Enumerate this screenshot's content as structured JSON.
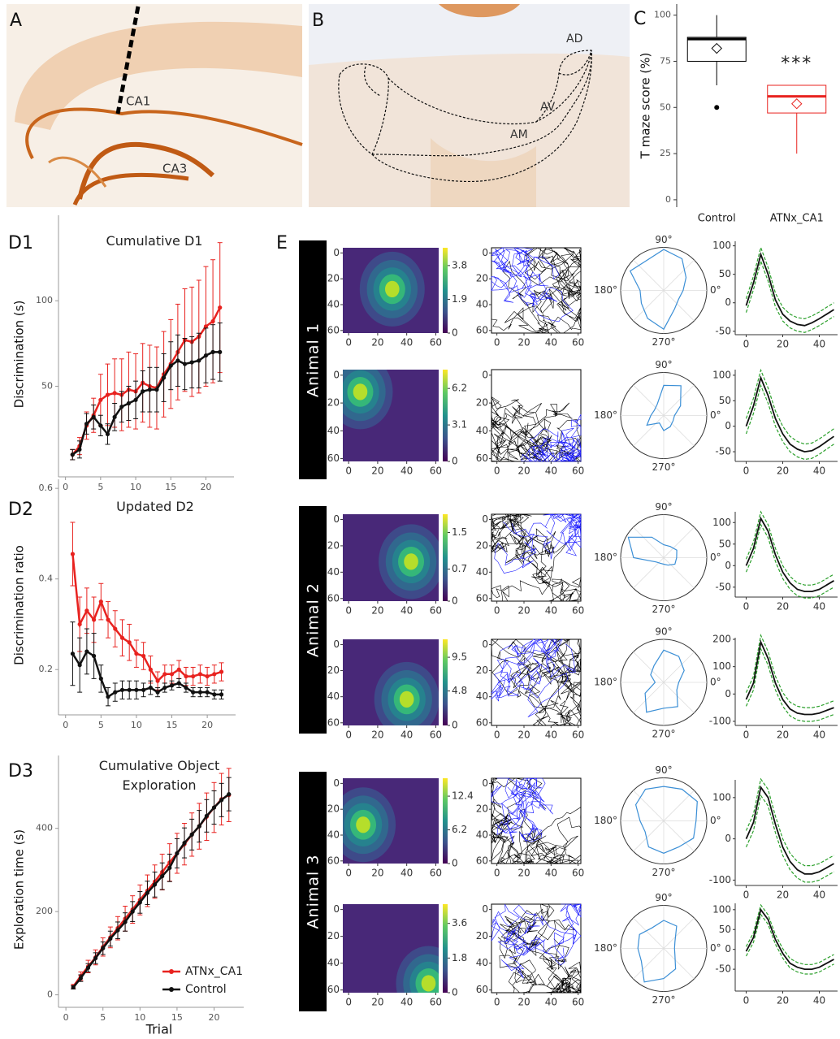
{
  "panel_a": {
    "label": "A",
    "regions": [
      "CA1",
      "CA3"
    ]
  },
  "panel_b": {
    "label": "B",
    "regions": [
      "AD",
      "AV",
      "AM"
    ]
  },
  "chart_data": [
    {
      "type": "box",
      "panel": "C",
      "ylabel": "T maze score (%)",
      "categories": [
        "Control",
        "ATNx_CA1"
      ],
      "ylim": [
        -4,
        106
      ],
      "yticks": [
        0,
        25,
        50,
        75,
        100
      ],
      "annotation": "***",
      "boxes": [
        {
          "color": "#000000",
          "whisker_low": 62,
          "q1": 75,
          "median": 87,
          "q3": 88,
          "whisker_high": 100,
          "mean": 82,
          "outliers": [
            50
          ]
        },
        {
          "color": "#e8221f",
          "whisker_low": 25,
          "q1": 47,
          "median": 56,
          "q3": 62,
          "whisker_high": 62,
          "mean": 52,
          "outliers": []
        }
      ]
    },
    {
      "type": "line",
      "panel": "D1",
      "title": "Cumulative D1",
      "ylabel": "Discrimination (s)",
      "x": [
        1,
        2,
        3,
        4,
        5,
        6,
        7,
        8,
        9,
        10,
        11,
        12,
        13,
        14,
        15,
        16,
        17,
        18,
        19,
        20,
        21,
        22
      ],
      "xlim": [
        -1,
        24
      ],
      "xticks": [
        0,
        5,
        10,
        15,
        20
      ],
      "ylim": [
        -3,
        150
      ],
      "yticks": [
        50,
        100
      ],
      "series": [
        {
          "color": "#e8221f",
          "values": [
            10,
            15,
            27,
            33,
            42,
            45,
            46,
            45,
            48,
            47,
            52,
            50,
            49,
            57,
            63,
            70,
            77,
            76,
            79,
            85,
            88,
            96
          ],
          "errors": [
            3,
            5,
            8,
            10,
            15,
            18,
            20,
            21,
            22,
            22,
            23,
            24,
            24,
            25,
            26,
            28,
            30,
            32,
            33,
            35,
            36,
            38
          ]
        },
        {
          "color": "#111111",
          "values": [
            10,
            13,
            28,
            32,
            27,
            22,
            32,
            38,
            40,
            42,
            47,
            48,
            48,
            55,
            62,
            65,
            63,
            64,
            65,
            68,
            70,
            70
          ],
          "errors": [
            3,
            5,
            6,
            7,
            6,
            6,
            8,
            9,
            10,
            11,
            12,
            13,
            13,
            14,
            14,
            15,
            15,
            15,
            16,
            16,
            16,
            17
          ]
        }
      ]
    },
    {
      "type": "line",
      "panel": "D2",
      "title": "Updated D2",
      "ylabel": "Discrimination ratio",
      "x": [
        1,
        2,
        3,
        4,
        5,
        6,
        7,
        8,
        9,
        10,
        11,
        12,
        13,
        14,
        15,
        16,
        17,
        18,
        19,
        20,
        21,
        22
      ],
      "xlim": [
        -1,
        24
      ],
      "xticks": [
        0,
        5,
        10,
        15,
        20
      ],
      "ylim": [
        0.1,
        0.62
      ],
      "yticks": [
        0.2,
        0.4,
        0.6
      ],
      "series": [
        {
          "color": "#e8221f",
          "values": [
            0.455,
            0.3,
            0.33,
            0.31,
            0.35,
            0.31,
            0.29,
            0.27,
            0.26,
            0.235,
            0.23,
            0.2,
            0.175,
            0.19,
            0.19,
            0.2,
            0.185,
            0.185,
            0.19,
            0.185,
            0.19,
            0.195
          ],
          "errors": [
            0.07,
            0.06,
            0.05,
            0.05,
            0.04,
            0.04,
            0.04,
            0.04,
            0.04,
            0.03,
            0.03,
            0.03,
            0.02,
            0.02,
            0.02,
            0.02,
            0.02,
            0.02,
            0.02,
            0.02,
            0.02,
            0.02
          ]
        },
        {
          "color": "#111111",
          "values": [
            0.235,
            0.21,
            0.24,
            0.23,
            0.18,
            0.14,
            0.15,
            0.155,
            0.155,
            0.155,
            0.155,
            0.16,
            0.15,
            0.16,
            0.165,
            0.17,
            0.16,
            0.15,
            0.15,
            0.15,
            0.145,
            0.145
          ],
          "errors": [
            0.07,
            0.06,
            0.05,
            0.05,
            0.03,
            0.02,
            0.02,
            0.02,
            0.02,
            0.02,
            0.015,
            0.015,
            0.01,
            0.01,
            0.01,
            0.01,
            0.01,
            0.01,
            0.01,
            0.01,
            0.01,
            0.01
          ]
        }
      ]
    },
    {
      "type": "line",
      "panel": "D3",
      "title": "Cumulative Object Exploration",
      "ylabel": "Exploration time (s)",
      "xlabel": "Trial",
      "x": [
        1,
        2,
        3,
        4,
        5,
        6,
        7,
        8,
        9,
        10,
        11,
        12,
        13,
        14,
        15,
        16,
        17,
        18,
        19,
        20,
        21,
        22
      ],
      "xlim": [
        -1,
        24
      ],
      "xticks": [
        0,
        5,
        10,
        15,
        20
      ],
      "ylim": [
        -30,
        575
      ],
      "yticks": [
        0,
        200,
        400
      ],
      "legend": "lower right",
      "series": [
        {
          "name": "ATNx_CA1",
          "color": "#e8221f",
          "values": [
            20,
            45,
            68,
            90,
            115,
            138,
            160,
            183,
            205,
            228,
            250,
            272,
            295,
            318,
            340,
            362,
            385,
            405,
            428,
            450,
            470,
            480
          ],
          "errors": [
            5,
            10,
            15,
            18,
            22,
            25,
            28,
            30,
            33,
            36,
            38,
            40,
            43,
            45,
            48,
            50,
            52,
            55,
            57,
            60,
            62,
            64
          ]
        },
        {
          "name": "Control",
          "color": "#111111",
          "values": [
            18,
            40,
            65,
            88,
            112,
            135,
            155,
            175,
            200,
            222,
            245,
            265,
            285,
            305,
            340,
            365,
            385,
            405,
            430,
            450,
            468,
            482
          ],
          "errors": [
            4,
            8,
            10,
            13,
            15,
            18,
            20,
            22,
            24,
            26,
            28,
            30,
            32,
            33,
            35,
            36,
            37,
            38,
            39,
            40,
            40,
            40
          ]
        }
      ]
    }
  ],
  "panel_e": {
    "label": "E",
    "animals": [
      "Animal 1",
      "Animal 2",
      "Animal 3"
    ],
    "arena_lim": [
      -4,
      62
    ],
    "arena_ticks": [
      0,
      20,
      40,
      60
    ],
    "polar_labels": [
      "90°",
      "180°",
      "0°",
      "270°"
    ],
    "directions": [
      0,
      30,
      60,
      90,
      120,
      150,
      180,
      210,
      240,
      270,
      300,
      330
    ],
    "polar_rmax": 1,
    "wave_x": [
      0,
      4,
      8,
      12,
      16,
      20,
      24,
      28,
      32,
      36,
      40,
      44,
      48
    ],
    "wave_xlim": [
      -6,
      50
    ],
    "wave_xticks": [
      0,
      20,
      40
    ],
    "rows": [
      {
        "colorbar_lim": [
          0,
          4.8
        ],
        "colorbar_ticks": [
          0,
          1.9,
          3.8
        ],
        "peak": [
          30,
          28
        ],
        "polar": [
          0.45,
          0.6,
          0.85,
          0.95,
          0.8,
          0.9,
          0.55,
          0.6,
          0.75,
          0.9,
          0.5,
          0.4
        ],
        "wave_ylim": [
          -56,
          108
        ],
        "wave_yticks": [
          -50,
          0,
          50,
          100
        ],
        "mean": [
          -5,
          35,
          85,
          50,
          5,
          -20,
          -32,
          -38,
          -40,
          -35,
          -28,
          -20,
          -12
        ],
        "band": 12
      },
      {
        "colorbar_lim": [
          0,
          7.8
        ],
        "colorbar_ticks": [
          0,
          3.1,
          6.2
        ],
        "peak": [
          8,
          12
        ],
        "polar": [
          0.25,
          0.45,
          0.8,
          0.7,
          0.3,
          0.25,
          0.3,
          0.45,
          0.2,
          0.35,
          0.3,
          0.25
        ],
        "wave_ylim": [
          -69,
          111
        ],
        "wave_yticks": [
          -50,
          0,
          50,
          100
        ],
        "mean": [
          0,
          40,
          95,
          60,
          15,
          -15,
          -35,
          -45,
          -50,
          -48,
          -40,
          -30,
          -20
        ],
        "band": 15
      },
      {
        "colorbar_lim": [
          0,
          1.9
        ],
        "colorbar_ticks": [
          0,
          0.7,
          1.5
        ],
        "peak": [
          43,
          32
        ],
        "polar": [
          0.3,
          0.35,
          0.3,
          0.3,
          0.55,
          0.95,
          0.7,
          0.2,
          0.15,
          0.15,
          0.2,
          0.3
        ],
        "wave_ylim": [
          -73,
          125
        ],
        "wave_yticks": [
          -50,
          0,
          50,
          100
        ],
        "mean": [
          0,
          40,
          110,
          80,
          25,
          -15,
          -40,
          -55,
          -60,
          -60,
          -55,
          -45,
          -35
        ],
        "band": 15
      },
      {
        "colorbar_lim": [
          0,
          12
        ],
        "colorbar_ticks": [
          0,
          4.8,
          9.5
        ],
        "peak": [
          40,
          42
        ],
        "polar": [
          0.35,
          0.55,
          0.7,
          0.75,
          0.45,
          0.35,
          0.2,
          0.5,
          0.8,
          0.6,
          0.65,
          0.35
        ],
        "wave_ylim": [
          -115,
          206
        ],
        "wave_yticks": [
          -100,
          0,
          100,
          200
        ],
        "mean": [
          -20,
          40,
          190,
          130,
          40,
          -20,
          -55,
          -70,
          -75,
          -75,
          -70,
          -60,
          -50
        ],
        "band": 25
      },
      {
        "colorbar_lim": [
          0,
          15.7
        ],
        "colorbar_ticks": [
          0,
          6.2,
          12.4
        ],
        "peak": [
          10,
          32
        ],
        "polar": [
          0.75,
          0.9,
          0.85,
          0.8,
          0.85,
          0.75,
          0.55,
          0.5,
          0.7,
          0.75,
          0.7,
          0.8
        ],
        "wave_ylim": [
          -113,
          143
        ],
        "wave_yticks": [
          -100,
          0,
          100
        ],
        "mean": [
          0,
          40,
          125,
          100,
          35,
          -20,
          -55,
          -75,
          -85,
          -85,
          -80,
          -70,
          -60
        ],
        "band": 20
      },
      {
        "colorbar_lim": [
          0,
          4.6
        ],
        "colorbar_ticks": [
          0,
          1.8,
          3.6
        ],
        "peak": [
          55,
          55
        ],
        "polar": [
          0.25,
          0.3,
          0.6,
          0.65,
          0.55,
          0.65,
          0.6,
          0.6,
          0.9,
          0.7,
          0.55,
          0.3
        ],
        "wave_ylim": [
          -105,
          116
        ],
        "wave_yticks": [
          -50,
          0,
          50,
          100
        ],
        "mean": [
          -5,
          30,
          100,
          75,
          25,
          -10,
          -35,
          -45,
          -50,
          -50,
          -45,
          -35,
          -25
        ],
        "band": 12
      }
    ]
  }
}
